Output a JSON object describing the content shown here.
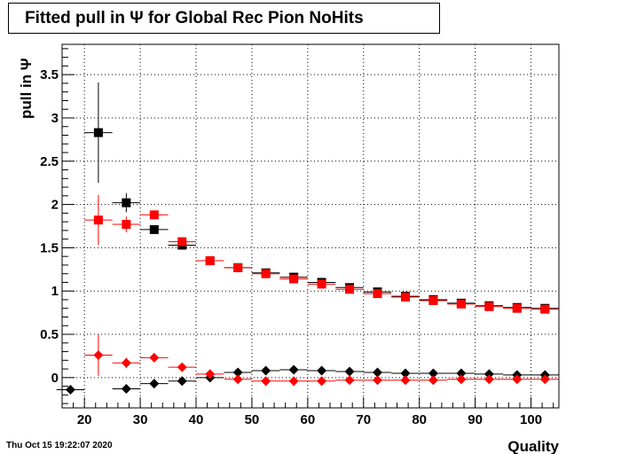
{
  "chart_data": {
    "type": "scatter",
    "title": "Fitted pull in  Ψ  for Global Rec Pion NoHits",
    "xlabel": "Quality",
    "ylabel": "pull in  Ψ",
    "xlim": [
      16,
      105
    ],
    "ylim": [
      -0.35,
      3.85
    ],
    "x_ticks": [
      20,
      30,
      40,
      50,
      60,
      70,
      80,
      90,
      100
    ],
    "y_ticks": [
      0,
      0.5,
      1,
      1.5,
      2,
      2.5,
      3,
      3.5
    ],
    "grid": true,
    "timestamp": "Thu Oct 15 19:22:07 2020",
    "series": [
      {
        "marker": "square",
        "color": "#000000",
        "x": [
          22.5,
          27.5,
          32.5,
          37.5,
          42.5,
          47.5,
          52.5,
          57.5,
          62.5,
          67.5,
          72.5,
          77.5,
          82.5,
          87.5,
          92.5,
          97.5,
          102.5
        ],
        "y": [
          2.83,
          2.02,
          1.71,
          1.53,
          1.35,
          1.27,
          1.21,
          1.16,
          1.1,
          1.04,
          0.99,
          0.94,
          0.9,
          0.86,
          0.83,
          0.81,
          0.8
        ],
        "yerr": [
          0.58,
          0.11,
          0.04,
          0.03,
          0.02,
          0.02,
          0.02,
          0.02,
          0.02,
          0.02,
          0.02,
          0.02,
          0.02,
          0.02,
          0.02,
          0.02,
          0.02
        ]
      },
      {
        "marker": "square",
        "color": "#ff0000",
        "x": [
          22.5,
          27.5,
          32.5,
          37.5,
          42.5,
          47.5,
          52.5,
          57.5,
          62.5,
          67.5,
          72.5,
          77.5,
          82.5,
          87.5,
          92.5,
          97.5,
          102.5
        ],
        "y": [
          1.82,
          1.77,
          1.88,
          1.57,
          1.35,
          1.27,
          1.2,
          1.14,
          1.08,
          1.02,
          0.97,
          0.93,
          0.89,
          0.85,
          0.82,
          0.8,
          0.79
        ],
        "yerr": [
          0.29,
          0.09,
          0.05,
          0.03,
          0.02,
          0.02,
          0.02,
          0.02,
          0.02,
          0.02,
          0.02,
          0.02,
          0.02,
          0.02,
          0.02,
          0.02,
          0.02
        ]
      },
      {
        "marker": "diamond",
        "color": "#000000",
        "x": [
          17.5,
          27.5,
          32.5,
          37.5,
          42.5,
          47.5,
          52.5,
          57.5,
          62.5,
          67.5,
          72.5,
          77.5,
          82.5,
          87.5,
          92.5,
          97.5,
          102.5
        ],
        "y": [
          -0.14,
          -0.13,
          -0.07,
          -0.04,
          0.0,
          0.06,
          0.08,
          0.09,
          0.08,
          0.07,
          0.06,
          0.05,
          0.05,
          0.05,
          0.04,
          0.03,
          0.03
        ],
        "yerr": [
          0.02,
          0.03,
          0.02,
          0.02,
          0.01,
          0.01,
          0.01,
          0.01,
          0.01,
          0.01,
          0.01,
          0.01,
          0.01,
          0.01,
          0.01,
          0.01,
          0.01
        ]
      },
      {
        "marker": "diamond",
        "color": "#ff0000",
        "x": [
          22.5,
          27.5,
          32.5,
          37.5,
          42.5,
          47.5,
          52.5,
          57.5,
          62.5,
          67.5,
          72.5,
          77.5,
          82.5,
          87.5,
          92.5,
          97.5,
          102.5
        ],
        "y": [
          0.26,
          0.17,
          0.23,
          0.12,
          0.04,
          -0.02,
          -0.04,
          -0.04,
          -0.04,
          -0.03,
          -0.03,
          -0.03,
          -0.03,
          -0.02,
          -0.02,
          -0.02,
          -0.02
        ],
        "yerr": [
          0.24,
          0.06,
          0.04,
          0.02,
          0.02,
          0.01,
          0.01,
          0.01,
          0.01,
          0.01,
          0.01,
          0.01,
          0.01,
          0.01,
          0.01,
          0.01,
          0.01
        ]
      }
    ]
  }
}
